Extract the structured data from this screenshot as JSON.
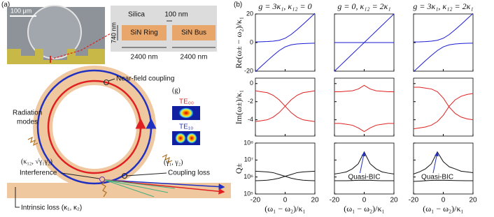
{
  "panel_a": {
    "label": "(a)",
    "scale_bar": "100 μm",
    "cross_section": {
      "cladding": "Silica",
      "gap": "100 nm",
      "height": "740 nm",
      "ring": "SiN Ring",
      "bus": "SiN Bus",
      "ring_width": "2400 nm",
      "bus_width": "2400 nm"
    },
    "schematic": {
      "coupling": "Near-field coupling",
      "coupling_symbol": "(g)",
      "mode_0": "TE₀₀",
      "mode_1": "TE₁₀",
      "radiation_1": "Radiation",
      "radiation_2": "modes",
      "interference_symbol": "(κ₁₂, √γ₁γ₂)",
      "interference": "Interference",
      "coupling_loss_symbol": "(γ₁, γ₂)",
      "coupling_loss": "Coupling loss",
      "intrinsic_loss": "Intrinsic loss (κ₁, κ₂)"
    }
  },
  "panel_b_label": "(b)",
  "chart_data": [
    {
      "type": "line",
      "title": "g = 3κ₁, κ₁₂ = 0",
      "ylabel": "Re(ω± − ω₂)/κ₁",
      "x": [
        -20,
        -16,
        -12,
        -8,
        -4,
        0,
        4,
        8,
        12,
        16,
        20
      ],
      "xlim": [
        -20,
        20
      ],
      "xticks": [
        -20,
        0,
        20
      ],
      "ylim": [
        -20,
        20
      ],
      "yticks": [
        -20,
        0,
        20
      ],
      "series": [
        {
          "color": "#1a1ad6",
          "values": [
            0.44,
            0.54,
            0.71,
            1,
            1.61,
            3,
            5.61,
            9,
            12.71,
            16.54,
            20.44
          ]
        },
        {
          "color": "#1a1ad6",
          "values": [
            -20.44,
            -16.54,
            -12.71,
            -9,
            -5.61,
            -3,
            -1.61,
            -1,
            -0.71,
            -0.54,
            -0.44
          ]
        }
      ]
    },
    {
      "type": "line",
      "title": "g = 0, κ₁₂ = 2κ₁",
      "x": [
        -20,
        -16,
        -12,
        -8,
        -4,
        0,
        4,
        8,
        12,
        16,
        20
      ],
      "xlim": [
        -20,
        20
      ],
      "xticks": [
        -20,
        0,
        20
      ],
      "ylim": [
        -20,
        20
      ],
      "yticks": [
        -20,
        0,
        20
      ],
      "series": [
        {
          "color": "#1a1ad6",
          "values": [
            -20,
            -16,
            -12,
            -8,
            -4,
            0,
            4,
            8,
            12,
            16,
            20
          ]
        },
        {
          "color": "#1a1ad6",
          "values": [
            0,
            0,
            0,
            0,
            0,
            0,
            0,
            0,
            0,
            0,
            0
          ]
        }
      ]
    },
    {
      "type": "line",
      "title": "g = 3κ₁, κ₁₂ = 2κ₁",
      "x": [
        -20,
        -16,
        -12,
        -8,
        -4,
        0,
        4,
        8,
        12,
        16,
        20
      ],
      "xlim": [
        -20,
        20
      ],
      "xticks": [
        -20,
        0,
        20
      ],
      "ylim": [
        -20,
        20
      ],
      "yticks": [
        -20,
        0,
        20
      ],
      "series": [
        {
          "color": "#1a1ad6",
          "values": [
            0.4,
            0.5,
            0.7,
            1,
            1.6,
            3,
            5.6,
            9,
            12.7,
            16.5,
            20.4
          ]
        },
        {
          "color": "#1a1ad6",
          "values": [
            -20.4,
            -16.5,
            -12.7,
            -9,
            -5.6,
            -3,
            -1.6,
            -1,
            -0.7,
            -0.5,
            -0.4
          ]
        }
      ]
    },
    {
      "type": "line",
      "ylabel": "Im(ω±)/κ₁",
      "x": [
        -20,
        -16,
        -12,
        -8,
        -4,
        0,
        4,
        8,
        12,
        16,
        20
      ],
      "xlim": [
        -20,
        20
      ],
      "xticks": [
        -20,
        0,
        20
      ],
      "ylim": [
        -5.8,
        0.6
      ],
      "yticks": [
        -4,
        -2,
        0
      ],
      "series": [
        {
          "color": "#e02020",
          "values": [
            -0.8,
            -0.9,
            -1.0,
            -1.3,
            -1.8,
            -2.5,
            -3.2,
            -3.7,
            -4.0,
            -4.1,
            -4.2
          ]
        },
        {
          "color": "#e02020",
          "values": [
            -4.2,
            -4.1,
            -4.0,
            -3.7,
            -3.2,
            -2.5,
            -1.8,
            -1.3,
            -1.0,
            -0.9,
            -0.8
          ]
        }
      ]
    },
    {
      "type": "line",
      "x": [
        -20,
        -16,
        -12,
        -8,
        -4,
        0,
        4,
        8,
        12,
        16,
        20
      ],
      "xlim": [
        -20,
        20
      ],
      "xticks": [
        -20,
        0,
        20
      ],
      "ylim": [
        -5.8,
        0.6
      ],
      "yticks": [
        -4,
        -2,
        0
      ],
      "series": [
        {
          "color": "#e02020",
          "values": [
            -0.9,
            -0.9,
            -0.85,
            -0.8,
            -0.6,
            -0.2,
            -0.6,
            -0.8,
            -0.85,
            -0.9,
            -0.9
          ]
        },
        {
          "color": "#e02020",
          "values": [
            -4.4,
            -4.4,
            -4.5,
            -4.6,
            -4.9,
            -5.3,
            -4.9,
            -4.6,
            -4.5,
            -4.4,
            -4.4
          ]
        }
      ]
    },
    {
      "type": "line",
      "x": [
        -20,
        -16,
        -12,
        -8,
        -4,
        0,
        4,
        8,
        12,
        16,
        20
      ],
      "xlim": [
        -20,
        20
      ],
      "xticks": [
        -20,
        0,
        20
      ],
      "ylim": [
        -5.8,
        0.6
      ],
      "yticks": [
        -4,
        -2,
        0
      ],
      "series": [
        {
          "color": "#e02020",
          "values": [
            -0.4,
            -0.4,
            -0.5,
            -0.6,
            -0.9,
            -1.6,
            -2.6,
            -3.3,
            -3.7,
            -3.9,
            -4.0
          ]
        },
        {
          "color": "#e02020",
          "values": [
            -5.0,
            -4.9,
            -4.8,
            -4.6,
            -4.2,
            -3.5,
            -2.5,
            -1.8,
            -1.4,
            -1.2,
            -1.1
          ]
        }
      ]
    },
    {
      "type": "line",
      "ylabel": "Q±",
      "xlabel": "(ω₁ − ω₂)/κ₁",
      "log_y": true,
      "x": [
        -20,
        -16,
        -12,
        -8,
        -4,
        0,
        4,
        8,
        12,
        16,
        20
      ],
      "xlim": [
        -20,
        20
      ],
      "xticks": [
        -20,
        0,
        20
      ],
      "ylim": [
        100000,
        100000000
      ],
      "yticks": [
        {
          "value": 100000,
          "label": "10⁵"
        },
        {
          "value": 1000000,
          "label": "10⁶"
        },
        {
          "value": 10000000,
          "label": "10⁷"
        },
        {
          "value": 100000000,
          "label": "10⁸"
        }
      ],
      "series": [
        {
          "color": "#111111",
          "values": [
            2200000,
            2100000,
            2000000,
            1800000,
            1400000,
            1100000,
            850000,
            720000,
            650000,
            620000,
            600000
          ]
        },
        {
          "color": "#111111",
          "values": [
            600000,
            620000,
            650000,
            720000,
            850000,
            1100000,
            1400000,
            1800000,
            2000000,
            2100000,
            2200000
          ]
        }
      ]
    },
    {
      "type": "line",
      "xlabel": "(ω₁ − ω₂)/κ₁",
      "log_y": true,
      "annotation": "Quasi-BIC",
      "x": [
        -20,
        -16,
        -12,
        -8,
        -4,
        0,
        4,
        8,
        12,
        16,
        20
      ],
      "xlim": [
        -20,
        20
      ],
      "xticks": [
        -20,
        0,
        20
      ],
      "ylim": [
        100000,
        100000000
      ],
      "yticks": [
        100000,
        1000000,
        10000000,
        100000000
      ],
      "series": [
        {
          "color": "#111111",
          "values": [
            1500000,
            1700000,
            2000000,
            3000000,
            6000000,
            30000000,
            6000000,
            3000000,
            2000000,
            1700000,
            1500000
          ]
        },
        {
          "color": "#111111",
          "values": [
            600000,
            600000,
            600000,
            620000,
            640000,
            650000,
            640000,
            620000,
            600000,
            600000,
            600000
          ]
        }
      ]
    },
    {
      "type": "line",
      "xlabel": "(ω₁ − ω₂)/κ₁",
      "log_y": true,
      "annotation": "Quasi-BIC",
      "x": [
        -20,
        -16,
        -12,
        -8,
        -4,
        0,
        4,
        8,
        12,
        16,
        20
      ],
      "xlim": [
        -20,
        20
      ],
      "xticks": [
        -20,
        0,
        20
      ],
      "ylim": [
        100000,
        100000000
      ],
      "yticks": [
        100000,
        1000000,
        10000000,
        100000000
      ],
      "series": [
        {
          "color": "#111111",
          "values": [
            1500000,
            2000000,
            3000000,
            6000000,
            30000000,
            8000000,
            4000000,
            3000000,
            2200000,
            2000000,
            1800000
          ]
        },
        {
          "color": "#111111",
          "values": [
            550000,
            570000,
            600000,
            630000,
            650000,
            640000,
            630000,
            620000,
            610000,
            600000,
            600000
          ]
        }
      ]
    }
  ]
}
